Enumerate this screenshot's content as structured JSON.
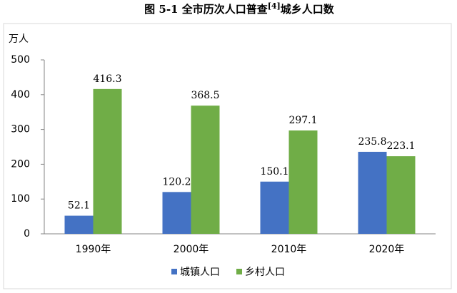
{
  "chart_data": {
    "type": "bar",
    "title": "图 5-1 全市历次人口普查",
    "title_note": "[4]",
    "title_end": "城乡人口数",
    "y_label": "万人",
    "categories": [
      "1990年",
      "2000年",
      "2010年",
      "2020年"
    ],
    "series": [
      {
        "name": "城镇人口",
        "color": "#4472c4",
        "values": [
          52.1,
          120.2,
          150.1,
          235.8
        ]
      },
      {
        "name": "乡村人口",
        "color": "#70ad47",
        "values": [
          416.3,
          368.5,
          297.1,
          223.1
        ]
      }
    ],
    "ylim": [
      0,
      500
    ],
    "yticks": [
      0,
      100,
      200,
      300,
      400,
      500
    ],
    "grid": false,
    "legend": "bottom"
  }
}
